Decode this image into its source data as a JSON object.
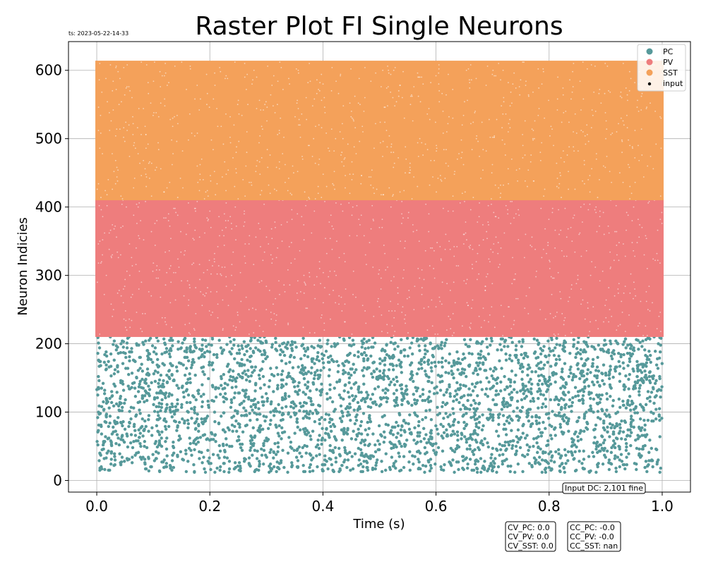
{
  "chart_data": {
    "type": "scatter",
    "title": "Raster Plot FI Single Neurons",
    "timestamp": "ts: 2023-05-22-14-33",
    "xlabel": "Time (s)",
    "ylabel": "Neuron Indicies",
    "xlim": [
      -0.05,
      1.05
    ],
    "ylim": [
      -17,
      642
    ],
    "x_ticks": [
      "0.0",
      "0.2",
      "0.4",
      "0.6",
      "0.8",
      "1.0"
    ],
    "y_ticks": [
      "0",
      "100",
      "200",
      "300",
      "400",
      "500",
      "600"
    ],
    "grid": true,
    "legend_position": "top-right",
    "series": [
      {
        "name": "PC",
        "color": "#56999a",
        "neuron_range": [
          12,
          210
        ],
        "time_range": [
          0.0,
          1.0
        ],
        "density": "sparse"
      },
      {
        "name": "PV",
        "color": "#ee7d7d",
        "neuron_range": [
          212,
          410
        ],
        "time_range": [
          0.0,
          1.0
        ],
        "density": "dense"
      },
      {
        "name": "SST",
        "color": "#f4a15a",
        "neuron_range": [
          412,
          612
        ],
        "time_range": [
          0.0,
          1.0
        ],
        "density": "dense"
      },
      {
        "name": "input",
        "color": "#000000",
        "neuron_range": [],
        "time_range": [],
        "density": "none"
      }
    ],
    "annotations": {
      "input_dc": "Input DC: 2,101 fine",
      "cv": [
        "CV_PC: 0.0",
        "CV_PV: 0.0",
        "CV_SST: 0.0"
      ],
      "cc": [
        "CC_PC: -0.0",
        "CC_PV: -0.0",
        "CC_SST: nan"
      ]
    }
  }
}
